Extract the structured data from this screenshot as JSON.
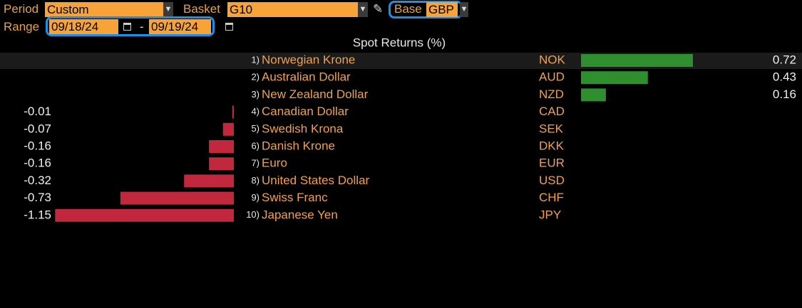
{
  "controls": {
    "period_label": "Period",
    "period_value": "Custom",
    "basket_label": "Basket",
    "basket_value": "G10",
    "base_label": "Base",
    "base_value": "GBP",
    "range_label": "Range",
    "start_date": "09/18/24",
    "separator": "-",
    "end_date": "09/19/24"
  },
  "chart_data": {
    "type": "bar",
    "title": "Spot Returns (%)",
    "ranks": [
      "1)",
      "2)",
      "3)",
      "4)",
      "5)",
      "6)",
      "7)",
      "8)",
      "9)",
      "10)"
    ],
    "categories": [
      "Norwegian Krone",
      "Australian Dollar",
      "New Zealand Dollar",
      "Canadian Dollar",
      "Swedish Krona",
      "Danish Krone",
      "Euro",
      "United States Dollar",
      "Swiss Franc",
      "Japanese Yen"
    ],
    "codes": [
      "NOK",
      "AUD",
      "NZD",
      "CAD",
      "SEK",
      "DKK",
      "EUR",
      "USD",
      "CHF",
      "JPY"
    ],
    "values": [
      0.72,
      0.43,
      0.16,
      -0.01,
      -0.07,
      -0.16,
      -0.16,
      -0.32,
      -0.73,
      -1.15
    ],
    "positive_color": "#2f8f2f",
    "negative_color": "#c1273d"
  }
}
